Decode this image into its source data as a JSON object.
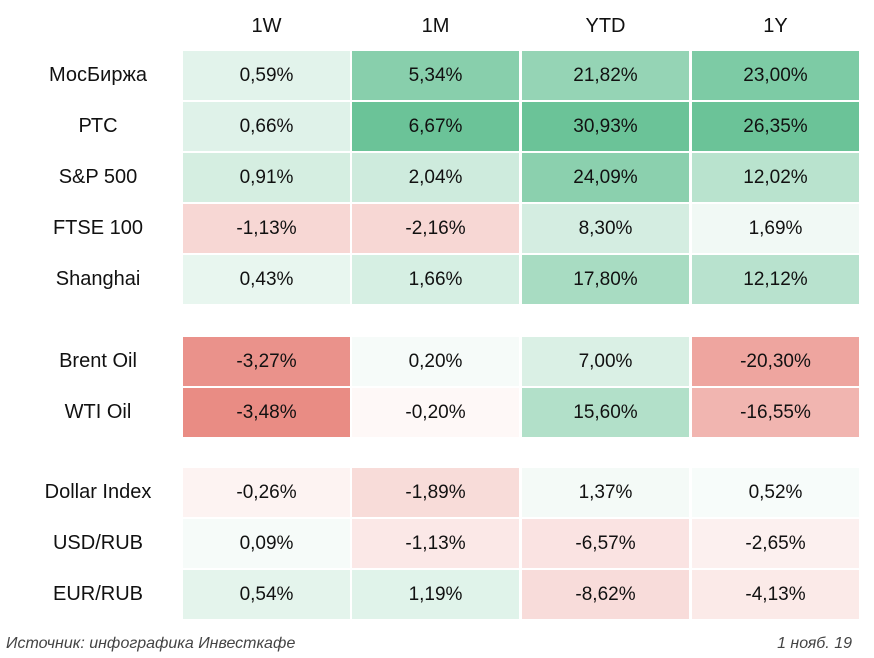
{
  "chart_data": {
    "type": "table",
    "columns": [
      "1W",
      "1M",
      "YTD",
      "1Y"
    ],
    "groups": [
      {
        "rows": [
          {
            "label": "МосБиржа",
            "values": [
              "0,59%",
              "5,34%",
              "21,82%",
              "23,00%"
            ],
            "numbers": [
              0.59,
              5.34,
              21.82,
              23.0
            ]
          },
          {
            "label": "РТС",
            "values": [
              "0,66%",
              "6,67%",
              "30,93%",
              "26,35%"
            ],
            "numbers": [
              0.66,
              6.67,
              30.93,
              26.35
            ]
          },
          {
            "label": "S&P 500",
            "values": [
              "0,91%",
              "2,04%",
              "24,09%",
              "12,02%"
            ],
            "numbers": [
              0.91,
              2.04,
              24.09,
              12.02
            ]
          },
          {
            "label": "FTSE 100",
            "values": [
              "-1,13%",
              "-2,16%",
              "8,30%",
              "1,69%"
            ],
            "numbers": [
              -1.13,
              -2.16,
              8.3,
              1.69
            ]
          },
          {
            "label": "Shanghai",
            "values": [
              "0,43%",
              "1,66%",
              "17,80%",
              "12,12%"
            ],
            "numbers": [
              0.43,
              1.66,
              17.8,
              12.12
            ]
          }
        ]
      },
      {
        "rows": [
          {
            "label": "Brent Oil",
            "values": [
              "-3,27%",
              "0,20%",
              "7,00%",
              "-20,30%"
            ],
            "numbers": [
              -3.27,
              0.2,
              7.0,
              -20.3
            ]
          },
          {
            "label": "WTI Oil",
            "values": [
              "-3,48%",
              "-0,20%",
              "15,60%",
              "-16,55%"
            ],
            "numbers": [
              -3.48,
              -0.2,
              15.6,
              -16.55
            ]
          }
        ]
      },
      {
        "rows": [
          {
            "label": "Dollar Index",
            "values": [
              "-0,26%",
              "-1,89%",
              "1,37%",
              "0,52%"
            ],
            "numbers": [
              -0.26,
              -1.89,
              1.37,
              0.52
            ]
          },
          {
            "label": "USD/RUB",
            "values": [
              "0,09%",
              "-1,13%",
              "-6,57%",
              "-2,65%"
            ],
            "numbers": [
              0.09,
              -1.13,
              -6.57,
              -2.65
            ]
          },
          {
            "label": "EUR/RUB",
            "values": [
              "0,54%",
              "1,19%",
              "-8,62%",
              "-4,13%"
            ],
            "numbers": [
              0.54,
              1.19,
              -8.62,
              -4.13
            ]
          }
        ]
      }
    ],
    "colors": {
      "positive": "#57bb8a",
      "negative": "#e67c73",
      "neutral": "#ffffff"
    },
    "grid": false
  },
  "footer": {
    "source": "Источник: инфографика Инвесткафе",
    "date": "1 нояб. 19"
  }
}
